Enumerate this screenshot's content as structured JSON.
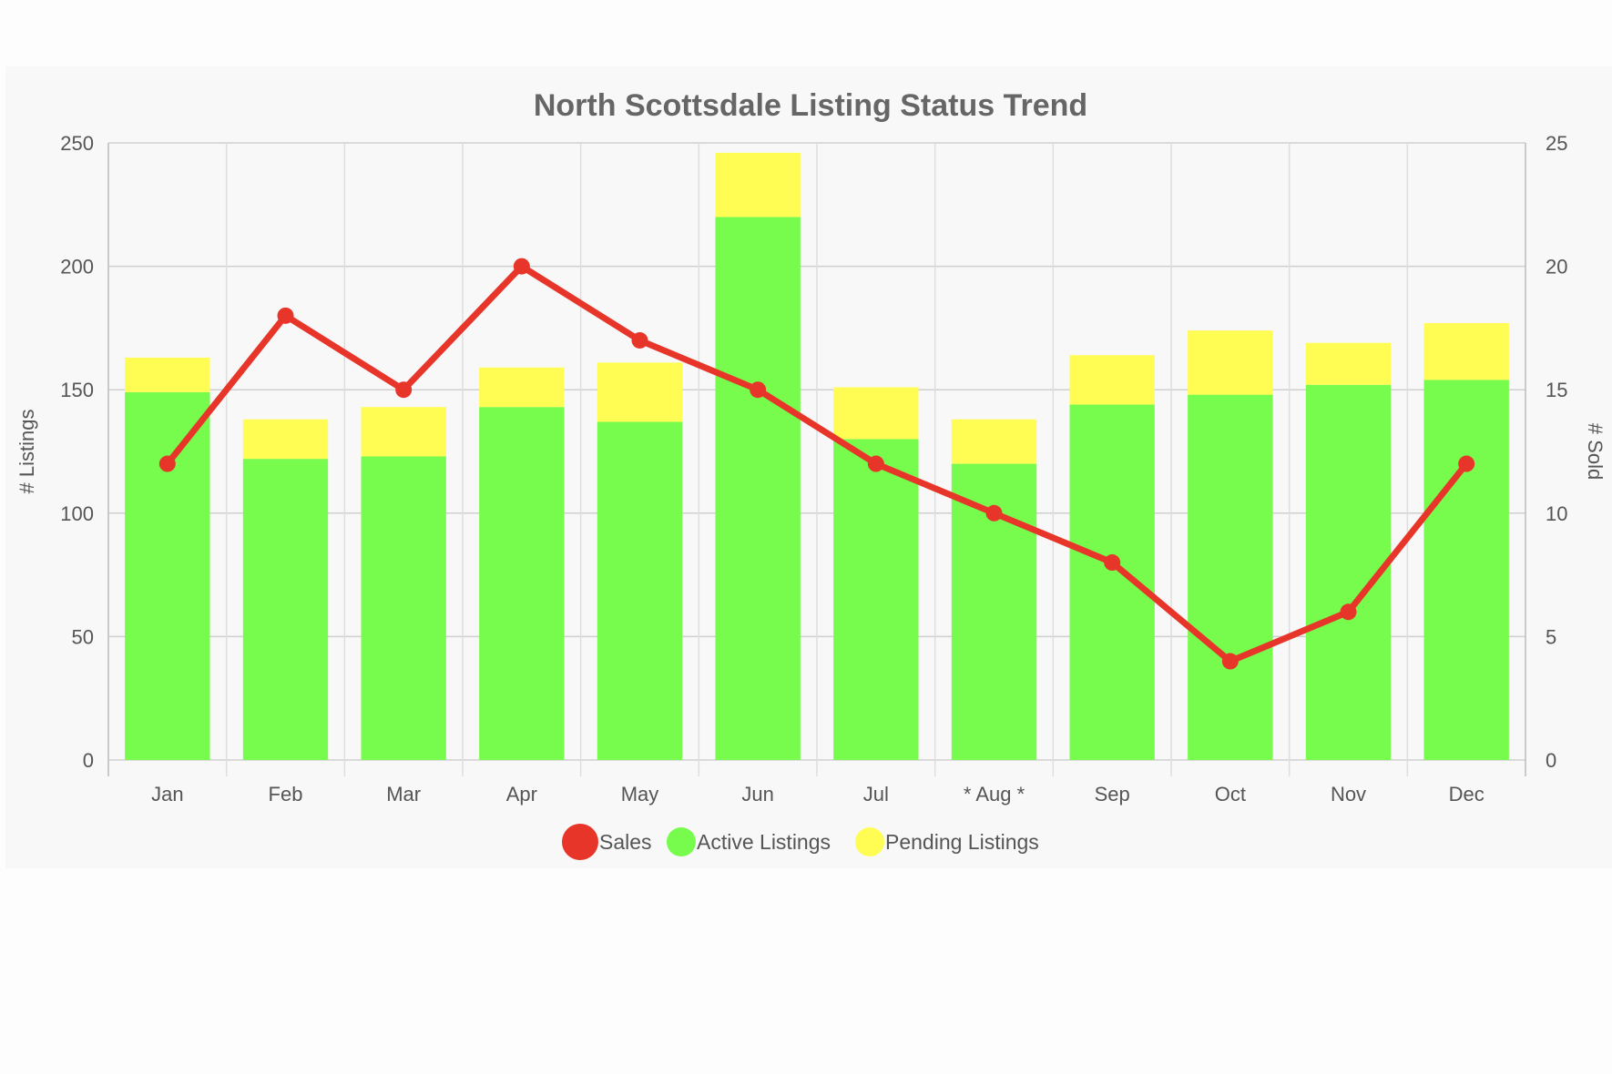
{
  "chart_data": {
    "type": "bar",
    "title": "North Scottsdale Listing Status Trend",
    "categories": [
      "Jan",
      "Feb",
      "Mar",
      "Apr",
      "May",
      "Jun",
      "Jul",
      "* Aug *",
      "Sep",
      "Oct",
      "Nov",
      "Dec"
    ],
    "y_left": {
      "label": "# Listings",
      "range": [
        0,
        250
      ],
      "ticks": [
        "0",
        "50",
        "100",
        "150",
        "200",
        "250"
      ]
    },
    "y_right": {
      "label": "# Sold",
      "range": [
        0,
        25
      ],
      "ticks": [
        "0",
        "5",
        "10",
        "15",
        "20",
        "25"
      ]
    },
    "stacked": true,
    "grid": true,
    "legend_position": "bottom",
    "series": [
      {
        "name": "Sales",
        "type": "line",
        "axis": "right",
        "color": "#e8352a",
        "values": [
          12,
          18,
          15,
          20,
          17,
          15,
          12,
          10,
          8,
          4,
          6,
          12
        ]
      },
      {
        "name": "Active Listings",
        "type": "bar",
        "axis": "left",
        "color": "#77fb4c",
        "values": [
          149,
          122,
          123,
          143,
          137,
          220,
          130,
          120,
          144,
          148,
          152,
          154
        ]
      },
      {
        "name": "Pending Listings",
        "type": "bar",
        "axis": "left",
        "color": "#fffd54",
        "values": [
          14,
          16,
          20,
          16,
          24,
          26,
          21,
          18,
          20,
          26,
          17,
          23
        ]
      }
    ]
  }
}
